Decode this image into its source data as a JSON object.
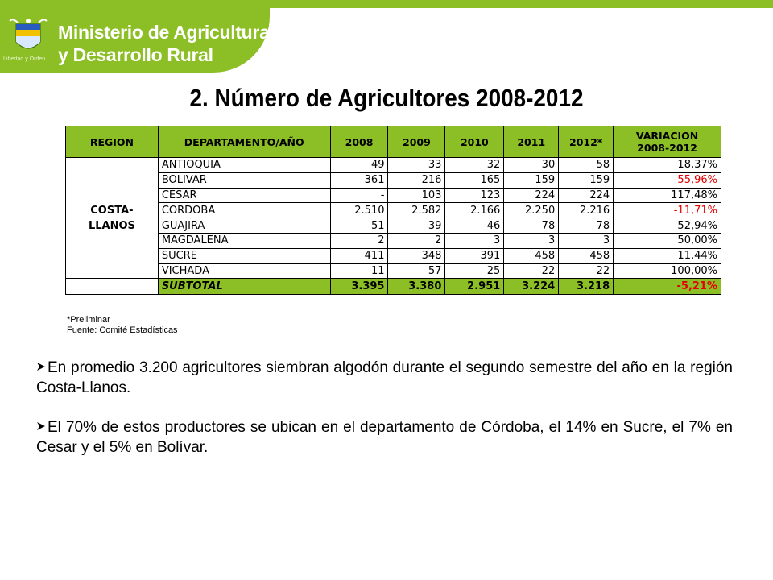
{
  "header": {
    "ministry_line1": "Ministerio de Agricultura",
    "ministry_line2": "y Desarrollo Rural",
    "motto": "Libertad y Orden",
    "logo_icon": "colombia-coat-of-arms-icon",
    "brand_color": "#8cbf26"
  },
  "title": "2. Número de Agricultores 2008-2012",
  "table": {
    "headers": [
      "REGION",
      "DEPARTAMENTO/AÑO",
      "2008",
      "2009",
      "2010",
      "2011",
      "2012*",
      "VARIACION",
      "2008-2012"
    ],
    "region": [
      "COSTA-",
      "LLANOS"
    ],
    "rows": [
      {
        "dep": "ANTIOQUIA",
        "v2008": "49",
        "v2009": "33",
        "v2010": "32",
        "v2011": "30",
        "v2012": "58",
        "var": "18,37%"
      },
      {
        "dep": "BOLIVAR",
        "v2008": "361",
        "v2009": "216",
        "v2010": "165",
        "v2011": "159",
        "v2012": "159",
        "var": "-55,96%"
      },
      {
        "dep": "CESAR",
        "v2008": "-",
        "v2009": "103",
        "v2010": "123",
        "v2011": "224",
        "v2012": "224",
        "var": "117,48%"
      },
      {
        "dep": "CORDOBA",
        "v2008": "2.510",
        "v2009": "2.582",
        "v2010": "2.166",
        "v2011": "2.250",
        "v2012": "2.216",
        "var": "-11,71%"
      },
      {
        "dep": "GUAJIRA",
        "v2008": "51",
        "v2009": "39",
        "v2010": "46",
        "v2011": "78",
        "v2012": "78",
        "var": "52,94%"
      },
      {
        "dep": "MAGDALENA",
        "v2008": "2",
        "v2009": "2",
        "v2010": "3",
        "v2011": "3",
        "v2012": "3",
        "var": "50,00%"
      },
      {
        "dep": "SUCRE",
        "v2008": "411",
        "v2009": "348",
        "v2010": "391",
        "v2011": "458",
        "v2012": "458",
        "var": "11,44%"
      },
      {
        "dep": "VICHADA",
        "v2008": "11",
        "v2009": "57",
        "v2010": "25",
        "v2011": "22",
        "v2012": "22",
        "var": "100,00%"
      }
    ],
    "subtotal": {
      "label": "SUBTOTAL",
      "v2008": "3.395",
      "v2009": "3.380",
      "v2010": "2.951",
      "v2011": "3.224",
      "v2012": "3.218",
      "var": "-5,21%"
    },
    "negative_color": "#e30000"
  },
  "notes": {
    "preliminar": "*Preliminar",
    "source": "Fuente: Comité Estadísticas"
  },
  "bullets": [
    "En promedio 3.200 agricultores siembran algodón durante el segundo semestre del año en la región Costa-Llanos.",
    "El 70% de estos productores se ubican en el departamento de Córdoba, el 14% en Sucre, el 7% en Cesar y el 5% en Bolívar."
  ],
  "bullet_icon": "arrow-bullet-icon"
}
